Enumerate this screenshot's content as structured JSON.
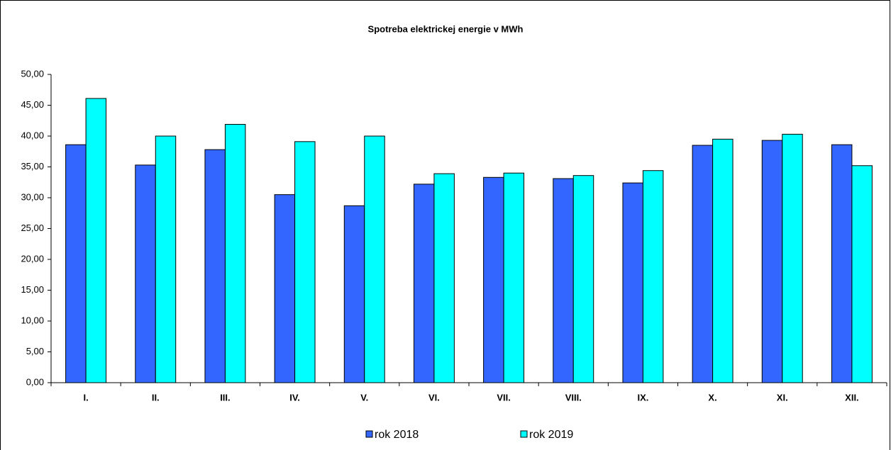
{
  "chart_data": {
    "type": "bar",
    "title": "Spotreba elektrickej energie v MWh",
    "categories": [
      "I.",
      "II.",
      "III.",
      "IV.",
      "V.",
      "VI.",
      "VII.",
      "VIII.",
      "IX.",
      "X.",
      "XI.",
      "XII."
    ],
    "series": [
      {
        "name": "rok 2018",
        "color": "#3366ff",
        "values": [
          38.6,
          35.3,
          37.8,
          30.5,
          28.7,
          32.2,
          33.3,
          33.1,
          32.4,
          38.5,
          39.3,
          38.6
        ]
      },
      {
        "name": "rok 2019",
        "color": "#00ffff",
        "values": [
          46.1,
          40.0,
          41.9,
          39.1,
          40.0,
          33.9,
          34.0,
          33.6,
          34.4,
          39.5,
          40.3,
          35.2
        ]
      }
    ],
    "ylim": [
      0,
      50
    ],
    "yticks": [
      {
        "value": 0,
        "label": "0,00"
      },
      {
        "value": 5,
        "label": "5,00"
      },
      {
        "value": 10,
        "label": "10,00"
      },
      {
        "value": 15,
        "label": "15,00"
      },
      {
        "value": 20,
        "label": "20,00"
      },
      {
        "value": 25,
        "label": "25,00"
      },
      {
        "value": 30,
        "label": "30,00"
      },
      {
        "value": 35,
        "label": "35,00"
      },
      {
        "value": 40,
        "label": "40,00"
      },
      {
        "value": 45,
        "label": "45,00"
      },
      {
        "value": 50,
        "label": "50,00"
      }
    ],
    "grid": false,
    "legend": "bottom"
  }
}
